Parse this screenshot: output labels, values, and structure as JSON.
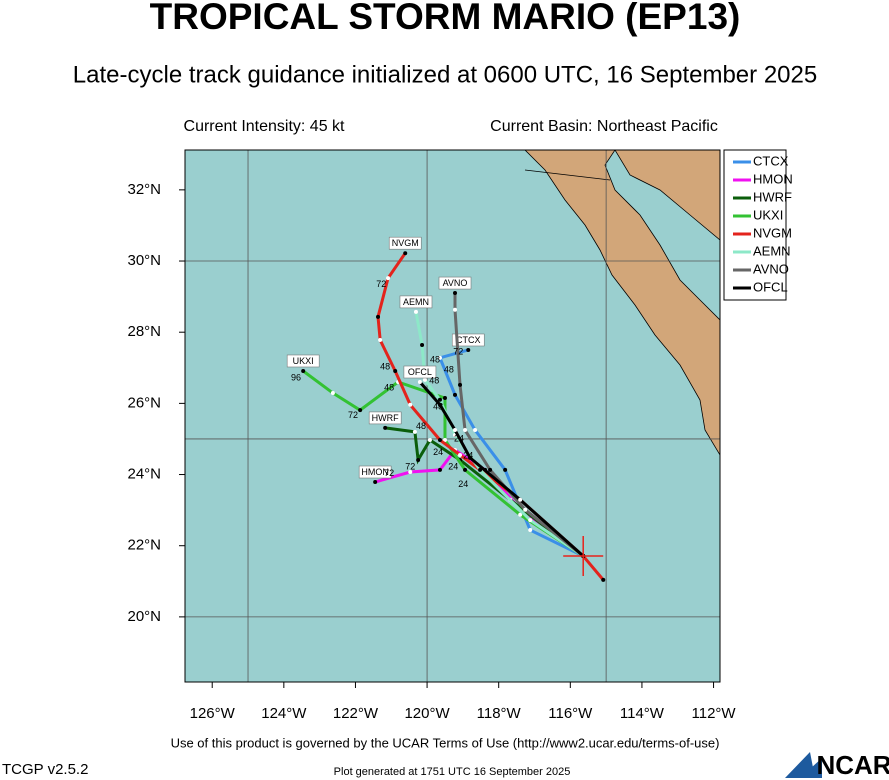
{
  "chart_data": {
    "type": "track-map",
    "title": "TROPICAL STORM MARIO (EP13)",
    "subtitle": "Late-cycle track guidance initialized at 0600 UTC, 16 September 2025",
    "info_left": "Current Intensity: 45 kt",
    "info_right": "Current Basin: Northeast Pacific",
    "footer": "Use of this product is governed by the UCAR Terms of Use (http://www2.ucar.edu/terms-of-use)",
    "version": "TCGP v2.5.2",
    "generated": "Plot generated at 1751 UTC   16 September 2025",
    "logo": "NCAR",
    "xlim": [
      -126.76,
      -111.82
    ],
    "ylim": [
      18.17,
      33.12
    ],
    "xticks": [
      {
        "value": -126,
        "label": "126°W"
      },
      {
        "value": -124,
        "label": "124°W"
      },
      {
        "value": -122,
        "label": "122°W"
      },
      {
        "value": -120,
        "label": "120°W"
      },
      {
        "value": -118,
        "label": "118°W"
      },
      {
        "value": -116,
        "label": "116°W"
      },
      {
        "value": -114,
        "label": "114°W"
      },
      {
        "value": -112,
        "label": "112°W"
      }
    ],
    "yticks": [
      {
        "value": 20,
        "label": "20°N"
      },
      {
        "value": 22,
        "label": "22°N"
      },
      {
        "value": 24,
        "label": "24°N"
      },
      {
        "value": 26,
        "label": "26°N"
      },
      {
        "value": 28,
        "label": "28°N"
      },
      {
        "value": 30,
        "label": "30°N"
      },
      {
        "value": 32,
        "label": "32°N"
      }
    ],
    "xgrid": [
      -125,
      -120,
      -115
    ],
    "ygrid": [
      20,
      25,
      30
    ],
    "current_position": {
      "lon": -115.64,
      "lat": 21.71,
      "color": "#e8231c"
    },
    "series": [
      {
        "name": "CTCX",
        "color": "#3a8fe8",
        "lon": [
          -115.64,
          -117.12,
          -117.82,
          -118.66,
          -119.22,
          -119.64,
          -118.85
        ],
        "lat": [
          21.71,
          22.44,
          24.13,
          25.25,
          26.24,
          27.28,
          27.5
        ]
      },
      {
        "name": "HMON",
        "color": "#f011f0",
        "lon": [
          -115.64,
          -117.26,
          -118.38,
          -119.22,
          -119.64,
          -120.47,
          -121.45
        ],
        "lat": [
          21.71,
          22.87,
          24.13,
          24.69,
          24.13,
          24.07,
          23.79
        ]
      },
      {
        "name": "HWRF",
        "color": "#0b5e0b",
        "lon": [
          -115.64,
          -117.68,
          -119.08,
          -119.92,
          -120.25,
          -120.34,
          -121.17
        ],
        "lat": [
          21.71,
          23.29,
          24.41,
          24.97,
          24.41,
          25.2,
          25.31
        ]
      },
      {
        "name": "UKXI",
        "color": "#33c233",
        "lon": [
          -115.64,
          -117.4,
          -118.94,
          -119.5,
          -119.5,
          -120.81,
          -121.87,
          -122.63,
          -123.46
        ],
        "lat": [
          21.71,
          22.87,
          24.13,
          24.97,
          26.15,
          26.6,
          25.81,
          26.29,
          26.91
        ]
      },
      {
        "name": "NVGM",
        "color": "#e3231c",
        "lon": [
          -115.08,
          -115.64,
          -117.4,
          -119.08,
          -119.64,
          -120.47,
          -120.89,
          -121.31,
          -121.37,
          -121.09,
          -120.61
        ],
        "lat": [
          21.04,
          21.71,
          23.29,
          24.55,
          24.97,
          25.96,
          26.91,
          27.78,
          28.43,
          29.52,
          30.22
        ]
      },
      {
        "name": "AEMN",
        "color": "#8de8c8",
        "lon": [
          -115.64,
          -117.12,
          -118.52,
          -119.22,
          -119.64,
          -120.06,
          -120.14,
          -120.31
        ],
        "lat": [
          21.71,
          22.72,
          24.13,
          25.11,
          26.1,
          26.66,
          27.64,
          28.57
        ]
      },
      {
        "name": "AVNO",
        "color": "#666666",
        "lon": [
          -115.64,
          -117.26,
          -118.24,
          -118.94,
          -119.08,
          -119.22,
          -119.22
        ],
        "lat": [
          21.71,
          23.01,
          24.13,
          25.25,
          26.52,
          28.63,
          29.1
        ]
      },
      {
        "name": "OFCL",
        "color": "#000000",
        "lon": [
          -115.64,
          -117.4,
          -118.8,
          -119.22,
          -119.64,
          -120.2
        ],
        "lat": [
          21.71,
          23.29,
          24.47,
          25.25,
          25.96,
          26.6
        ]
      }
    ],
    "hour_labels": [
      {
        "text": "72",
        "lon": -121.28,
        "lat": 29.33
      },
      {
        "text": "48",
        "lon": -121.17,
        "lat": 27.02
      },
      {
        "text": "96",
        "lon": -123.66,
        "lat": 26.71
      },
      {
        "text": "72",
        "lon": -122.07,
        "lat": 25.65
      },
      {
        "text": "48",
        "lon": -121.06,
        "lat": 26.43
      },
      {
        "text": "48",
        "lon": -120.17,
        "lat": 25.34
      },
      {
        "text": "72",
        "lon": -120.47,
        "lat": 24.21
      },
      {
        "text": "72",
        "lon": -121.06,
        "lat": 24.02
      },
      {
        "text": "48",
        "lon": -119.78,
        "lat": 27.22
      },
      {
        "text": "48",
        "lon": -119.8,
        "lat": 26.63
      },
      {
        "text": "48",
        "lon": -119.39,
        "lat": 26.94
      },
      {
        "text": "72",
        "lon": -119.13,
        "lat": 27.44
      },
      {
        "text": "48",
        "lon": -119.69,
        "lat": 25.9
      },
      {
        "text": "24",
        "lon": -119.11,
        "lat": 25.0
      },
      {
        "text": "24",
        "lon": -119.69,
        "lat": 24.61
      },
      {
        "text": "24",
        "lon": -119.27,
        "lat": 24.21
      },
      {
        "text": "24",
        "lon": -118.85,
        "lat": 24.52
      },
      {
        "text": "24",
        "lon": -118.99,
        "lat": 23.71
      }
    ]
  }
}
